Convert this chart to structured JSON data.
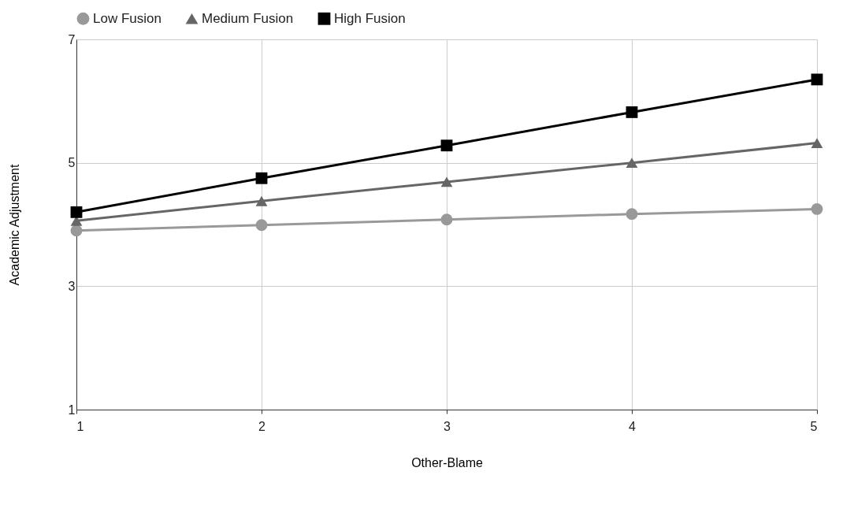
{
  "chart_data": {
    "type": "line",
    "xlabel": "Other-Blame",
    "ylabel": "Academic Adjustment",
    "x": [
      1,
      2,
      3,
      4,
      5
    ],
    "series": [
      {
        "name": "Low Fusion",
        "color": "#999999",
        "marker": "circle",
        "values": [
          3.9,
          3.99,
          4.08,
          4.17,
          4.25
        ]
      },
      {
        "name": "Medium Fusion",
        "color": "#666666",
        "marker": "triangle",
        "values": [
          4.06,
          4.38,
          4.69,
          5.0,
          5.32
        ]
      },
      {
        "name": "High Fusion",
        "color": "#000000",
        "marker": "square",
        "values": [
          4.2,
          4.75,
          5.28,
          5.82,
          6.35
        ]
      }
    ],
    "xlim": [
      1,
      5
    ],
    "xticks": [
      1,
      2,
      3,
      4,
      5
    ],
    "ylim": [
      1,
      7
    ],
    "yticks": [
      1,
      3,
      5,
      7
    ],
    "grid": true,
    "legend": "top",
    "line_style": "solid"
  }
}
